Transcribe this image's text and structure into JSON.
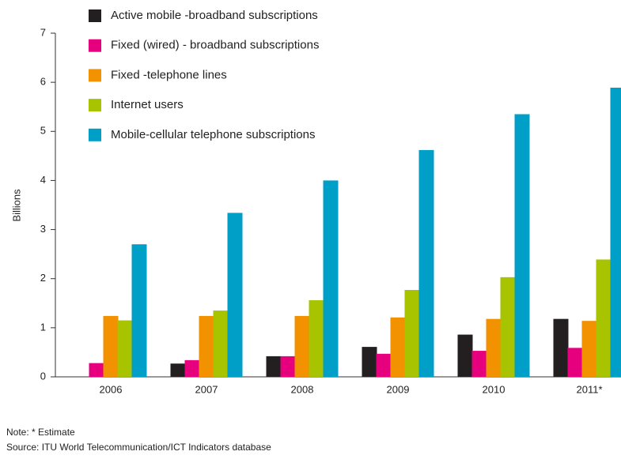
{
  "chart_data": {
    "type": "bar",
    "ylabel": "Billions",
    "categories": [
      "2006",
      "2007",
      "2008",
      "2009",
      "2010",
      "2011*"
    ],
    "series": [
      {
        "name": "Active mobile -broadband subscriptions",
        "color": "#231f20",
        "values": [
          null,
          0.27,
          0.42,
          0.61,
          0.86,
          1.18
        ]
      },
      {
        "name": "Fixed (wired) - broadband subscriptions",
        "color": "#e6007e",
        "values": [
          0.28,
          0.34,
          0.42,
          0.47,
          0.53,
          0.59
        ]
      },
      {
        "name": "Fixed -telephone lines",
        "color": "#f39200",
        "values": [
          1.24,
          1.24,
          1.24,
          1.21,
          1.18,
          1.14
        ]
      },
      {
        "name": "Internet users",
        "color": "#a8c300",
        "values": [
          1.15,
          1.35,
          1.56,
          1.77,
          2.03,
          2.39
        ]
      },
      {
        "name": "Mobile-cellular telephone subscriptions",
        "color": "#009fc8",
        "values": [
          2.7,
          3.34,
          4.0,
          4.62,
          5.35,
          5.89
        ]
      }
    ],
    "ylim": [
      0,
      7
    ],
    "yticks": [
      0,
      1,
      2,
      3,
      4,
      5,
      6,
      7
    ],
    "notes": [
      "Note: * Estimate",
      "Source: ITU World Telecommunication/ICT Indicators database"
    ]
  }
}
